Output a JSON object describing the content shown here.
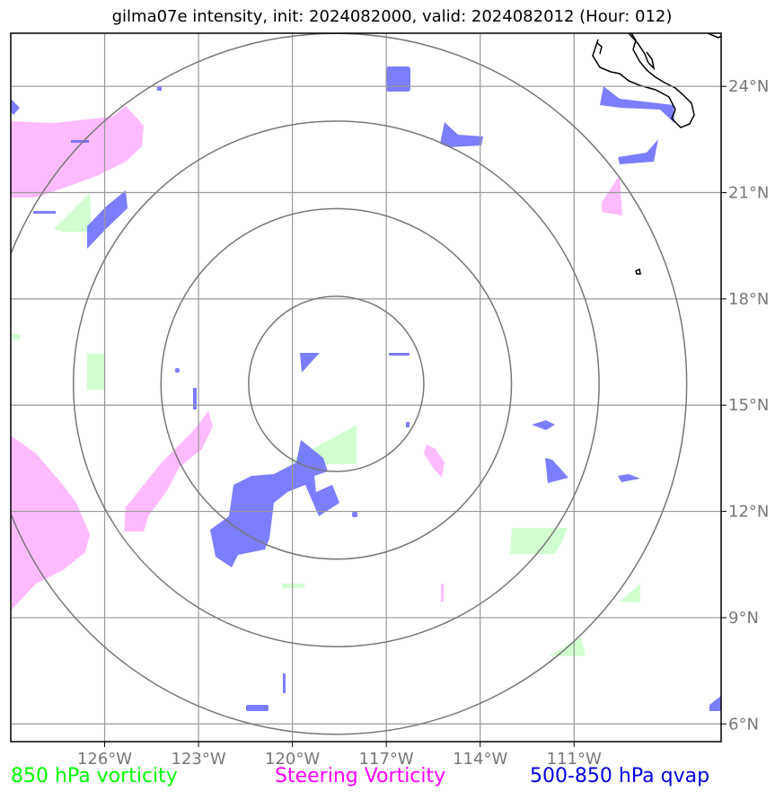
{
  "title": "gilma07e intensity, init: 2024082000, valid: 2024082012 (Hour: 012)",
  "map": {
    "lon_range": [
      -129,
      -106.3
    ],
    "lat_range": [
      5.5,
      25.5
    ],
    "lon_ticks": [
      {
        "value": -126,
        "label": "126°W"
      },
      {
        "value": -123,
        "label": "123°W"
      },
      {
        "value": -120,
        "label": "120°W"
      },
      {
        "value": -117,
        "label": "117°W"
      },
      {
        "value": -114,
        "label": "114°W"
      },
      {
        "value": -111,
        "label": "111°W"
      }
    ],
    "lat_ticks": [
      {
        "value": 6,
        "label": "6°N"
      },
      {
        "value": 9,
        "label": "9°N"
      },
      {
        "value": 12,
        "label": "12°N"
      },
      {
        "value": 15,
        "label": "15°N"
      },
      {
        "value": 18,
        "label": "18°N"
      },
      {
        "value": 21,
        "label": "21°N"
      },
      {
        "value": 24,
        "label": "24°N"
      }
    ],
    "range_rings_center": {
      "lon": -118.6,
      "lat": 15.6
    },
    "range_rings_deg": [
      2.8,
      5.6,
      8.4,
      11.2
    ],
    "gridline_color": "#999999",
    "ring_color": "#777777",
    "coastline_color": "#000000"
  },
  "legend": [
    {
      "label": "850 hPa vorticity",
      "color": "#00ff00"
    },
    {
      "label": "Steering Vorticity",
      "color": "#ff00ff"
    },
    {
      "label": "500-850 hPa qvap",
      "color": "#0000e0"
    }
  ],
  "fill_colors": {
    "vorticity_850": "#ccffcc",
    "steering_vorticity": "#ffbbff",
    "qvap": "#6666ff"
  }
}
